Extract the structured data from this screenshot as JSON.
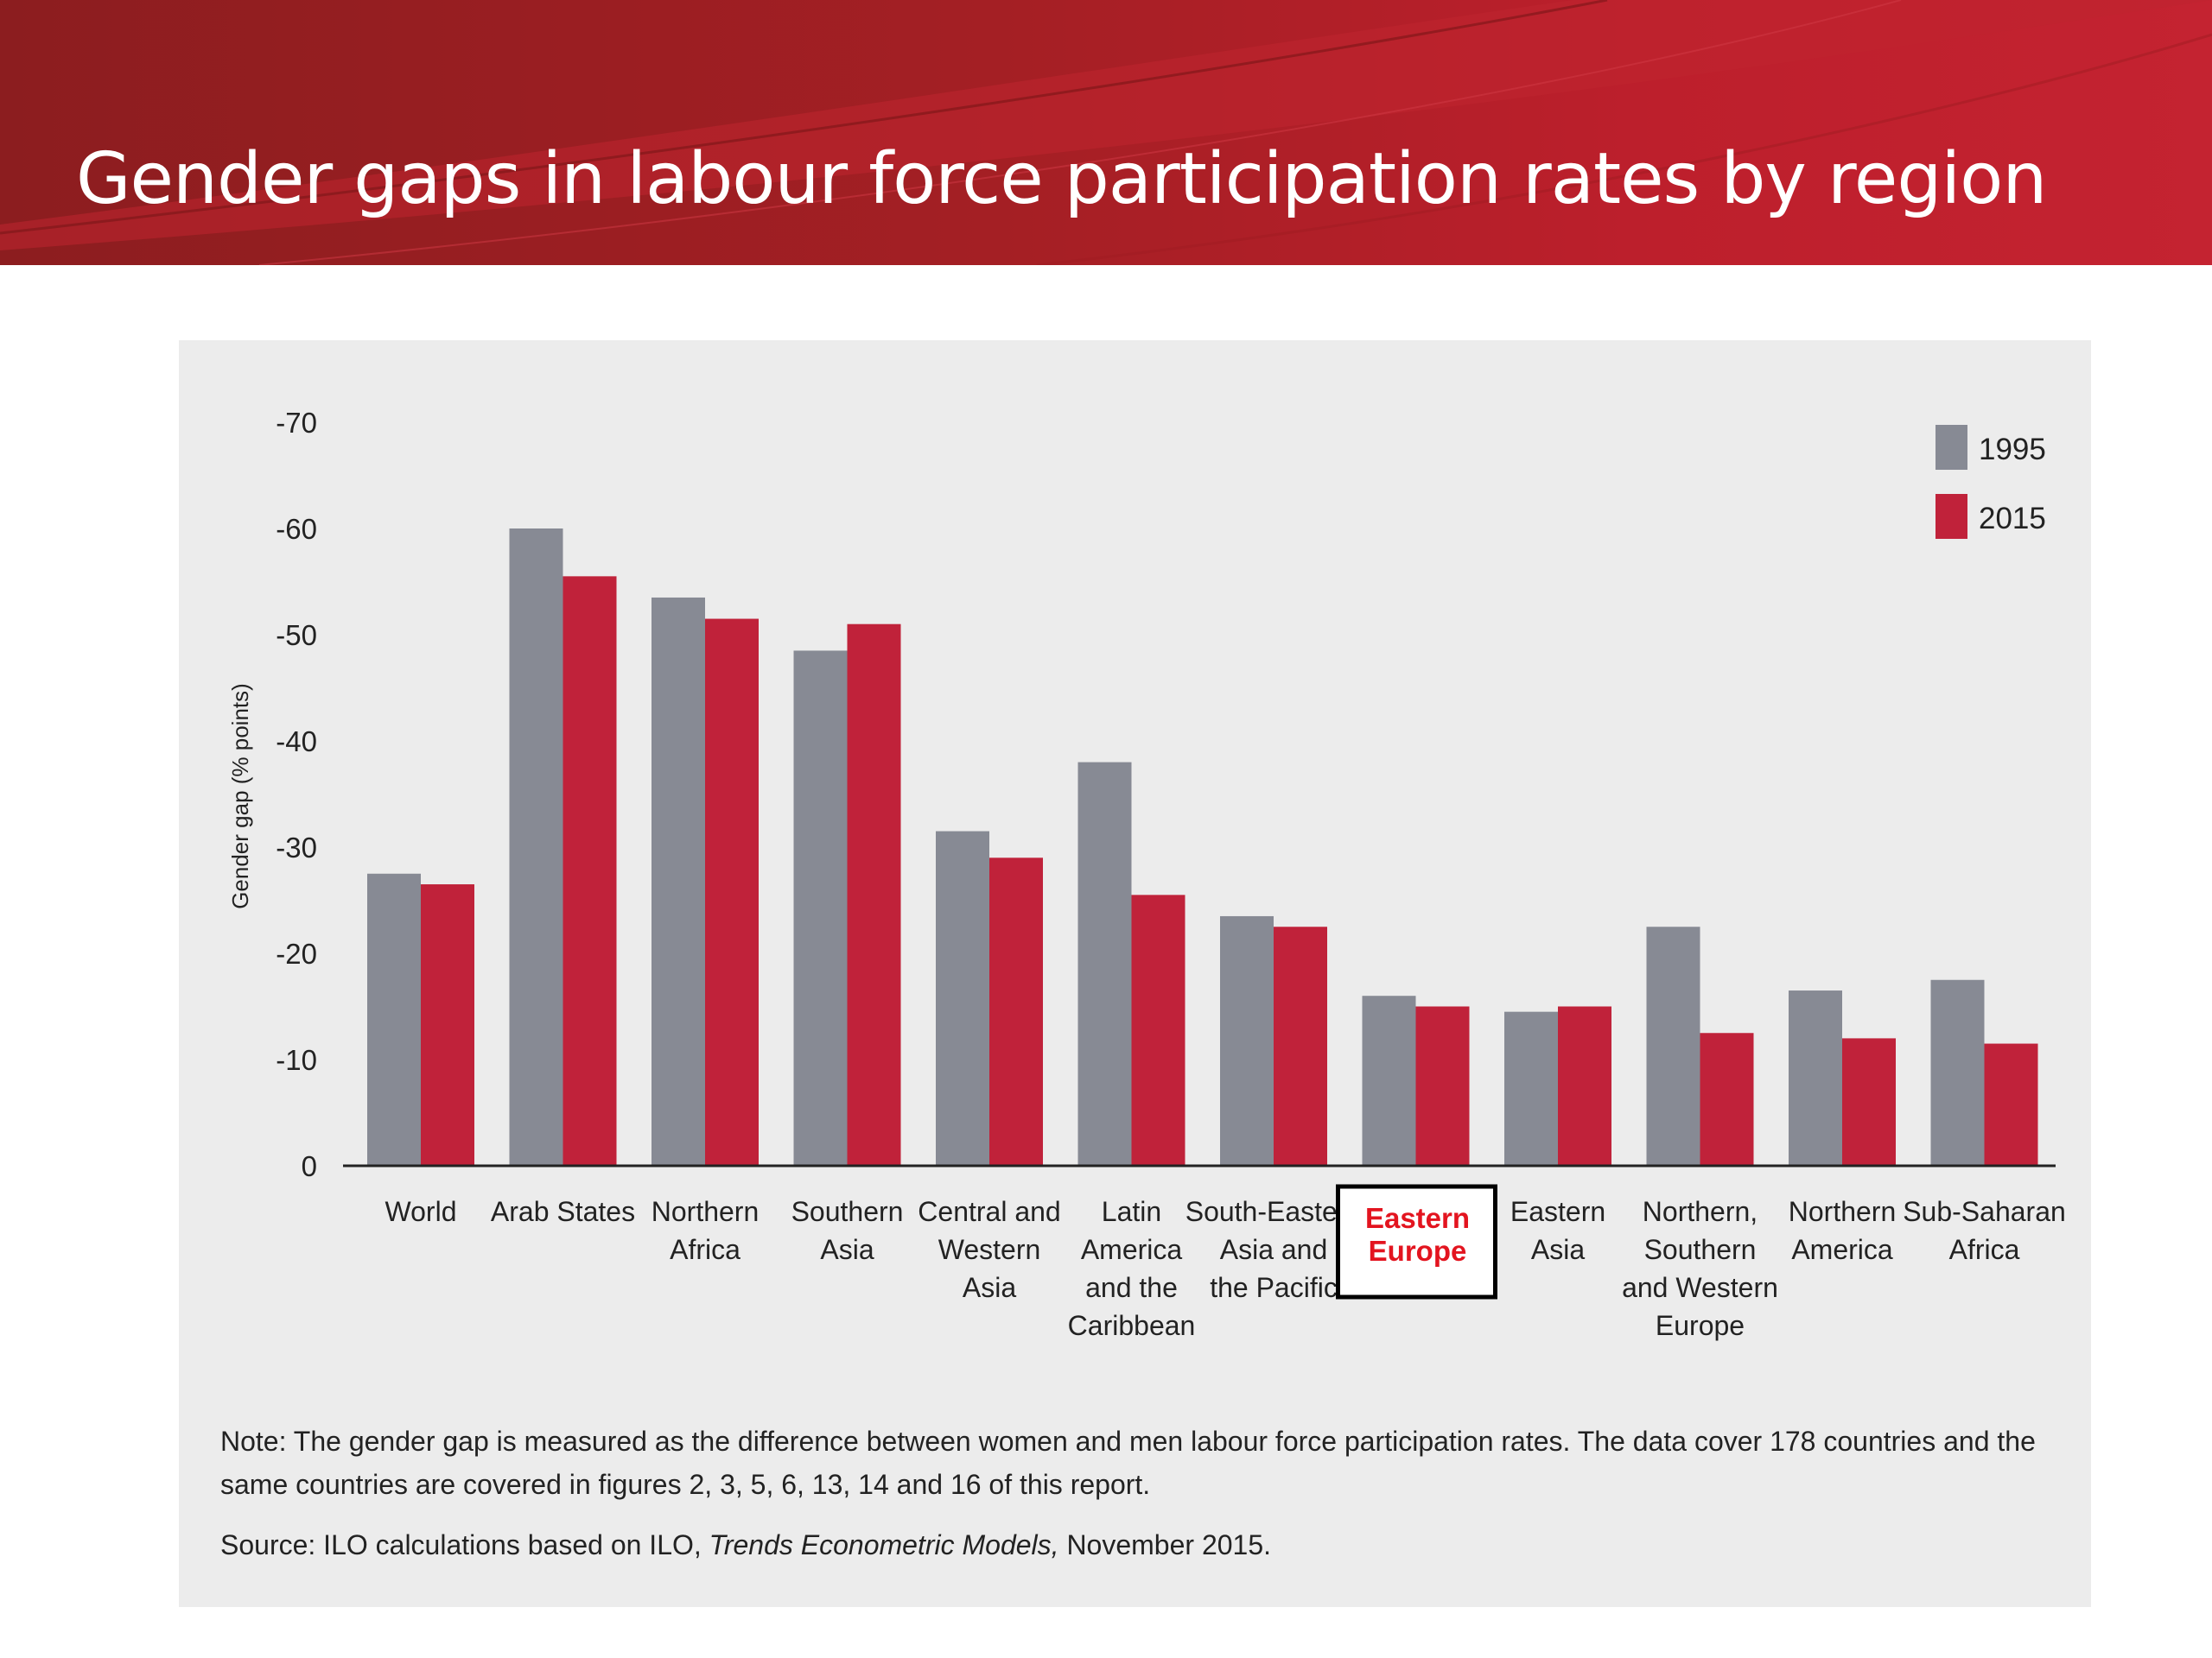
{
  "slide": {
    "title": "Gender gaps in labour force participation rates by region"
  },
  "chart_data": {
    "type": "bar",
    "ylabel": "Gender gap (% points)",
    "yticks": [
      "0",
      "-10",
      "-20",
      "-30",
      "-40",
      "-50",
      "-60",
      "-70"
    ],
    "ylim": [
      0,
      -70
    ],
    "categories": [
      [
        "World"
      ],
      [
        "Arab States"
      ],
      [
        "Northern",
        "Africa"
      ],
      [
        "Southern",
        "Asia"
      ],
      [
        "Central and",
        "Western",
        "Asia"
      ],
      [
        "Latin",
        "America",
        "and the",
        "Caribbean"
      ],
      [
        "South-Eastern",
        "Asia and",
        "the Pacific"
      ],
      [
        "Eastern",
        "Europe"
      ],
      [
        "Eastern",
        "Asia"
      ],
      [
        "Northern,",
        "Southern",
        "and Western",
        "Europe"
      ],
      [
        "Northern",
        "America"
      ],
      [
        "Sub-Saharan",
        "Africa"
      ]
    ],
    "highlighted_category_index": 7,
    "series": [
      {
        "name": "1995",
        "color": "#878a94",
        "values": [
          -27.5,
          -60,
          -53.5,
          -48.5,
          -31.5,
          -38,
          -23.5,
          -16,
          -14.5,
          -22.5,
          -16.5,
          -17.5
        ]
      },
      {
        "name": "2015",
        "color": "#c0223a",
        "values": [
          -26.5,
          -55.5,
          -51.5,
          -51,
          -29,
          -25.5,
          -22.5,
          -15,
          -15,
          -12.5,
          -12,
          -11.5
        ]
      }
    ],
    "legend_position": "top-right",
    "grid": false
  },
  "note": "Note: The gender gap is measured as the difference between women and men labour force participation rates. The data cover 178 countries and the same countries are covered in figures 2, 3, 5, 6, 13, 14 and 16 of this report.",
  "source": {
    "prefix": "Source: ILO calculations based on ILO, ",
    "italic": "Trends Econometric Models,",
    "suffix": " November 2015."
  }
}
